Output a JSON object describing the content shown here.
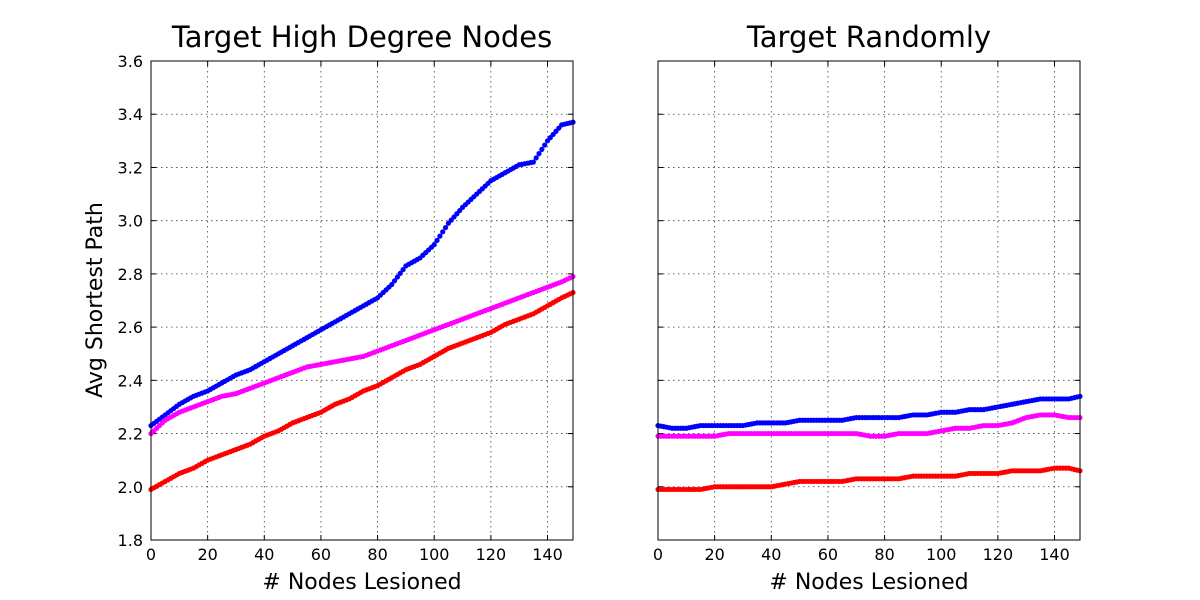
{
  "chart_data": [
    {
      "type": "scatter",
      "title": "Target High Degree Nodes",
      "xlabel": "# Nodes Lesioned",
      "ylabel": "Avg Shortest Path",
      "xlim": [
        0,
        149
      ],
      "ylim": [
        1.8,
        3.6
      ],
      "xticks": [
        "0",
        "20",
        "40",
        "60",
        "80",
        "100",
        "120",
        "140"
      ],
      "yticks": [
        "1.8",
        "2.0",
        "2.2",
        "2.4",
        "2.6",
        "2.8",
        "3.0",
        "3.2",
        "3.4",
        "3.6"
      ],
      "grid": true,
      "series": [
        {
          "color": "#0000ff",
          "x": [
            0,
            5,
            10,
            15,
            20,
            25,
            30,
            35,
            40,
            45,
            50,
            55,
            60,
            65,
            70,
            75,
            80,
            85,
            90,
            95,
            100,
            105,
            110,
            115,
            120,
            125,
            130,
            135,
            140,
            145,
            149
          ],
          "y": [
            2.23,
            2.27,
            2.31,
            2.34,
            2.36,
            2.39,
            2.42,
            2.44,
            2.47,
            2.5,
            2.53,
            2.56,
            2.59,
            2.62,
            2.65,
            2.68,
            2.71,
            2.76,
            2.83,
            2.86,
            2.91,
            2.99,
            3.05,
            3.1,
            3.15,
            3.18,
            3.21,
            3.22,
            3.3,
            3.36,
            3.37
          ]
        },
        {
          "color": "#ff00ff",
          "x": [
            0,
            5,
            10,
            15,
            20,
            25,
            30,
            35,
            40,
            45,
            50,
            55,
            60,
            65,
            70,
            75,
            80,
            85,
            90,
            95,
            100,
            105,
            110,
            115,
            120,
            125,
            130,
            135,
            140,
            145,
            149
          ],
          "y": [
            2.2,
            2.25,
            2.28,
            2.3,
            2.32,
            2.34,
            2.35,
            2.37,
            2.39,
            2.41,
            2.43,
            2.45,
            2.46,
            2.47,
            2.48,
            2.49,
            2.51,
            2.53,
            2.55,
            2.57,
            2.59,
            2.61,
            2.63,
            2.65,
            2.67,
            2.69,
            2.71,
            2.73,
            2.75,
            2.77,
            2.79
          ]
        },
        {
          "color": "#ff0000",
          "x": [
            0,
            5,
            10,
            15,
            20,
            25,
            30,
            35,
            40,
            45,
            50,
            55,
            60,
            65,
            70,
            75,
            80,
            85,
            90,
            95,
            100,
            105,
            110,
            115,
            120,
            125,
            130,
            135,
            140,
            145,
            149
          ],
          "y": [
            1.99,
            2.02,
            2.05,
            2.07,
            2.1,
            2.12,
            2.14,
            2.16,
            2.19,
            2.21,
            2.24,
            2.26,
            2.28,
            2.31,
            2.33,
            2.36,
            2.38,
            2.41,
            2.44,
            2.46,
            2.49,
            2.52,
            2.54,
            2.56,
            2.58,
            2.61,
            2.63,
            2.65,
            2.68,
            2.71,
            2.73
          ]
        }
      ]
    },
    {
      "type": "scatter",
      "title": "Target Randomly",
      "xlabel": "# Nodes Lesioned",
      "ylabel": "",
      "xlim": [
        0,
        149
      ],
      "ylim": [
        1.8,
        3.6
      ],
      "xticks": [
        "0",
        "20",
        "40",
        "60",
        "80",
        "100",
        "120",
        "140"
      ],
      "yticks": [],
      "grid": true,
      "series": [
        {
          "color": "#0000ff",
          "x": [
            0,
            5,
            10,
            15,
            20,
            25,
            30,
            35,
            40,
            45,
            50,
            55,
            60,
            65,
            70,
            75,
            80,
            85,
            90,
            95,
            100,
            105,
            110,
            115,
            120,
            125,
            130,
            135,
            140,
            145,
            149
          ],
          "y": [
            2.23,
            2.22,
            2.22,
            2.23,
            2.23,
            2.23,
            2.23,
            2.24,
            2.24,
            2.24,
            2.25,
            2.25,
            2.25,
            2.25,
            2.26,
            2.26,
            2.26,
            2.26,
            2.27,
            2.27,
            2.28,
            2.28,
            2.29,
            2.29,
            2.3,
            2.31,
            2.32,
            2.33,
            2.33,
            2.33,
            2.34
          ]
        },
        {
          "color": "#ff00ff",
          "x": [
            0,
            5,
            10,
            15,
            20,
            25,
            30,
            35,
            40,
            45,
            50,
            55,
            60,
            65,
            70,
            75,
            80,
            85,
            90,
            95,
            100,
            105,
            110,
            115,
            120,
            125,
            130,
            135,
            140,
            145,
            149
          ],
          "y": [
            2.19,
            2.19,
            2.19,
            2.19,
            2.19,
            2.2,
            2.2,
            2.2,
            2.2,
            2.2,
            2.2,
            2.2,
            2.2,
            2.2,
            2.2,
            2.19,
            2.19,
            2.2,
            2.2,
            2.2,
            2.21,
            2.22,
            2.22,
            2.23,
            2.23,
            2.24,
            2.26,
            2.27,
            2.27,
            2.26,
            2.26
          ]
        },
        {
          "color": "#ff0000",
          "x": [
            0,
            5,
            10,
            15,
            20,
            25,
            30,
            35,
            40,
            45,
            50,
            55,
            60,
            65,
            70,
            75,
            80,
            85,
            90,
            95,
            100,
            105,
            110,
            115,
            120,
            125,
            130,
            135,
            140,
            145,
            149
          ],
          "y": [
            1.99,
            1.99,
            1.99,
            1.99,
            2.0,
            2.0,
            2.0,
            2.0,
            2.0,
            2.01,
            2.02,
            2.02,
            2.02,
            2.02,
            2.03,
            2.03,
            2.03,
            2.03,
            2.04,
            2.04,
            2.04,
            2.04,
            2.05,
            2.05,
            2.05,
            2.06,
            2.06,
            2.06,
            2.07,
            2.07,
            2.06
          ]
        }
      ]
    }
  ]
}
